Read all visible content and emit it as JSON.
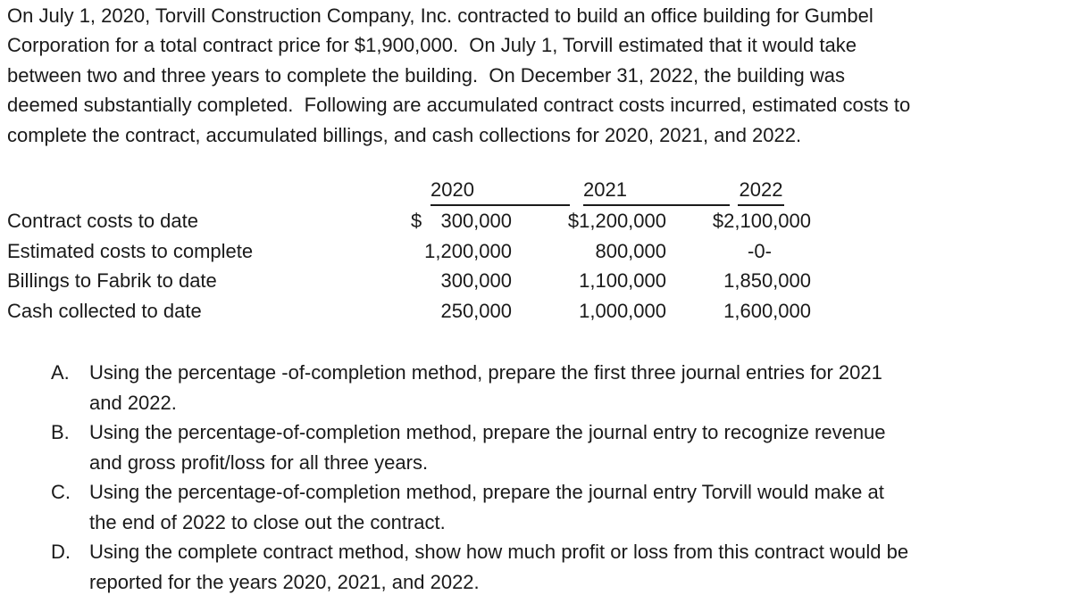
{
  "colors": {
    "text": "#1a1a1a",
    "background": "#ffffff"
  },
  "intro": {
    "lines": [
      "On July 1, 2020, Torvill Construction Company, Inc. contracted to build an office building for Gumbel",
      "Corporation for a total contract price for $1,900,000.  On July 1, Torvill estimated that it would take",
      "between two and three years to complete the building.  On December 31, 2022, the building was",
      "deemed substantially completed.  Following are accumulated contract costs incurred, estimated costs to",
      "complete the contract, accumulated billings, and cash collections for 2020, 2021, and 2022."
    ]
  },
  "table": {
    "headers": [
      "2020",
      "2021",
      "2022"
    ],
    "row_labels": [
      "Contract costs to date",
      "Estimated costs to complete",
      "Billings to Fabrik to date",
      "Cash collected to date"
    ],
    "col2020": {
      "dollar": "$",
      "r1": "300,000",
      "r2": "1,200,000",
      "r3": "300,000",
      "r4": "250,000"
    },
    "col2021": {
      "r1": "$1,200,000",
      "r2": "800,000",
      "r3": "1,100,000",
      "r4": "1,000,000"
    },
    "col2022": {
      "r1": "$2,100,000",
      "r2": "-0-",
      "r3": "1,850,000",
      "r4": "1,600,000"
    }
  },
  "requirements": [
    {
      "letter": "A.",
      "line1": "Using the percentage -of-completion method, prepare the first three journal entries for 2021",
      "line2": "and 2022."
    },
    {
      "letter": "B.",
      "line1": "Using the percentage-of-completion method, prepare the journal entry to recognize revenue",
      "line2": "and gross profit/loss for all three years."
    },
    {
      "letter": "C.",
      "line1": "Using the percentage-of-completion method, prepare the journal entry Torvill would make at",
      "line2": "the end of 2022 to close out the contract."
    },
    {
      "letter": "D.",
      "line1": "Using the complete contract method, show how much profit or loss from this contract would be",
      "line2": "reported for the years 2020, 2021, and 2022."
    }
  ]
}
